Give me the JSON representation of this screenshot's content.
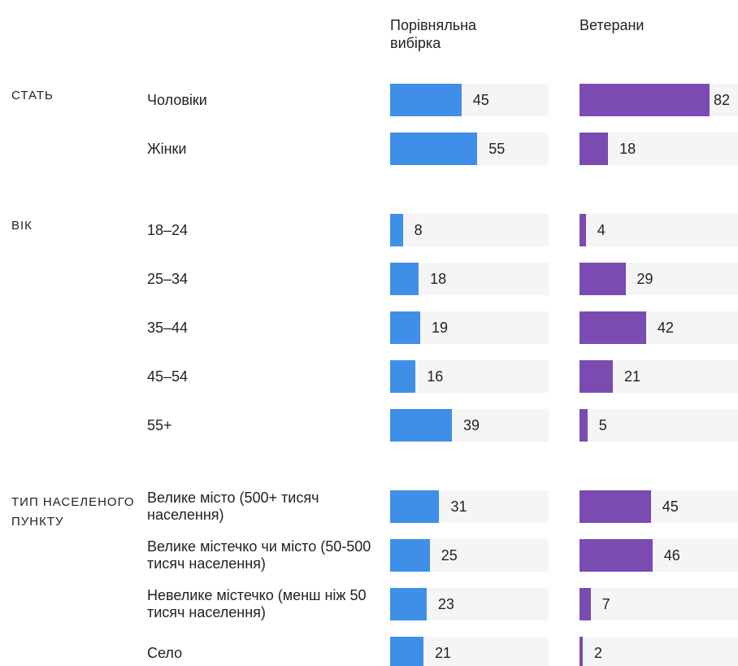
{
  "chart_data": {
    "type": "bar",
    "xlim": [
      0,
      100
    ],
    "series": [
      {
        "name": "Порівняльна вибірка",
        "color": "#3f8fe8"
      },
      {
        "name": "Ветерани",
        "color": "#7a4bb0"
      }
    ],
    "groups": [
      {
        "name": "СТАТЬ",
        "categories": [
          "Чоловіки",
          "Жінки"
        ],
        "series": [
          {
            "values": [
              45,
              55
            ]
          },
          {
            "values": [
              82,
              18
            ]
          }
        ]
      },
      {
        "name": "ВІК",
        "categories": [
          "18–24",
          "25–34",
          "35–44",
          "45–54",
          "55+"
        ],
        "series": [
          {
            "values": [
              8,
              18,
              19,
              16,
              39
            ]
          },
          {
            "values": [
              4,
              29,
              42,
              21,
              5
            ]
          }
        ]
      },
      {
        "name": "ТИП НАСЕЛЕНОГО ПУНКТУ",
        "categories": [
          "Велике місто (500+ тисяч населення)",
          "Велике містечко чи місто (50-500 тисяч населення)",
          "Невелике містечко (менш ніж 50 тисяч населення)",
          "Село"
        ],
        "series": [
          {
            "values": [
              31,
              25,
              23,
              21
            ]
          },
          {
            "values": [
              45,
              46,
              7,
              2
            ]
          }
        ]
      }
    ]
  }
}
